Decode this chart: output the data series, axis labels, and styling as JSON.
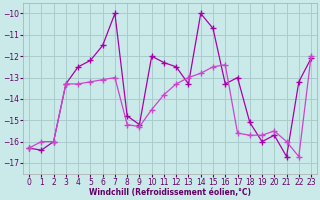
{
  "xlabel": "Windchill (Refroidissement éolien,°C)",
  "background_color": "#caeaea",
  "grid_color": "#aacccc",
  "line1_color": "#aa00aa",
  "line2_color": "#cc44cc",
  "xlim": [
    -0.5,
    23.5
  ],
  "ylim": [
    -17.5,
    -9.5
  ],
  "yticks": [
    -17,
    -16,
    -15,
    -14,
    -13,
    -12,
    -11,
    -10
  ],
  "xticks": [
    0,
    1,
    2,
    3,
    4,
    5,
    6,
    7,
    8,
    9,
    10,
    11,
    12,
    13,
    14,
    15,
    16,
    17,
    18,
    19,
    20,
    21,
    22,
    23
  ],
  "s1_x": [
    0,
    1,
    2,
    3,
    4,
    5,
    6,
    7,
    8,
    9,
    10,
    11,
    12,
    13,
    14,
    15,
    16,
    17,
    18,
    19,
    20,
    21,
    22,
    23
  ],
  "s1_y": [
    -16.3,
    -16.4,
    -16.0,
    -13.3,
    -12.5,
    -12.2,
    -11.5,
    -10.0,
    -14.8,
    -15.2,
    -12.0,
    -12.3,
    -12.5,
    -13.3,
    -10.0,
    -10.7,
    -13.3,
    -13.0,
    -15.1,
    -16.0,
    -15.7,
    -16.7,
    -13.2,
    -12.1
  ],
  "s2_x": [
    0,
    1,
    2,
    3,
    4,
    5,
    6,
    7,
    8,
    9,
    10,
    11,
    12,
    13,
    14,
    15,
    16,
    17,
    18,
    19,
    20,
    21,
    22,
    23
  ],
  "s2_y": [
    -16.3,
    -16.0,
    -16.0,
    -13.3,
    -13.3,
    -13.2,
    -13.1,
    -13.0,
    -15.2,
    -15.3,
    -14.5,
    -13.8,
    -13.3,
    -13.0,
    -12.8,
    -12.5,
    -12.4,
    -15.6,
    -15.7,
    -15.7,
    -15.5,
    -16.0,
    -16.7,
    -12.0
  ],
  "marker": "+",
  "markersize": 4,
  "linewidth": 0.9,
  "tick_labelsize": 5.5,
  "xlabel_fontsize": 5.5
}
